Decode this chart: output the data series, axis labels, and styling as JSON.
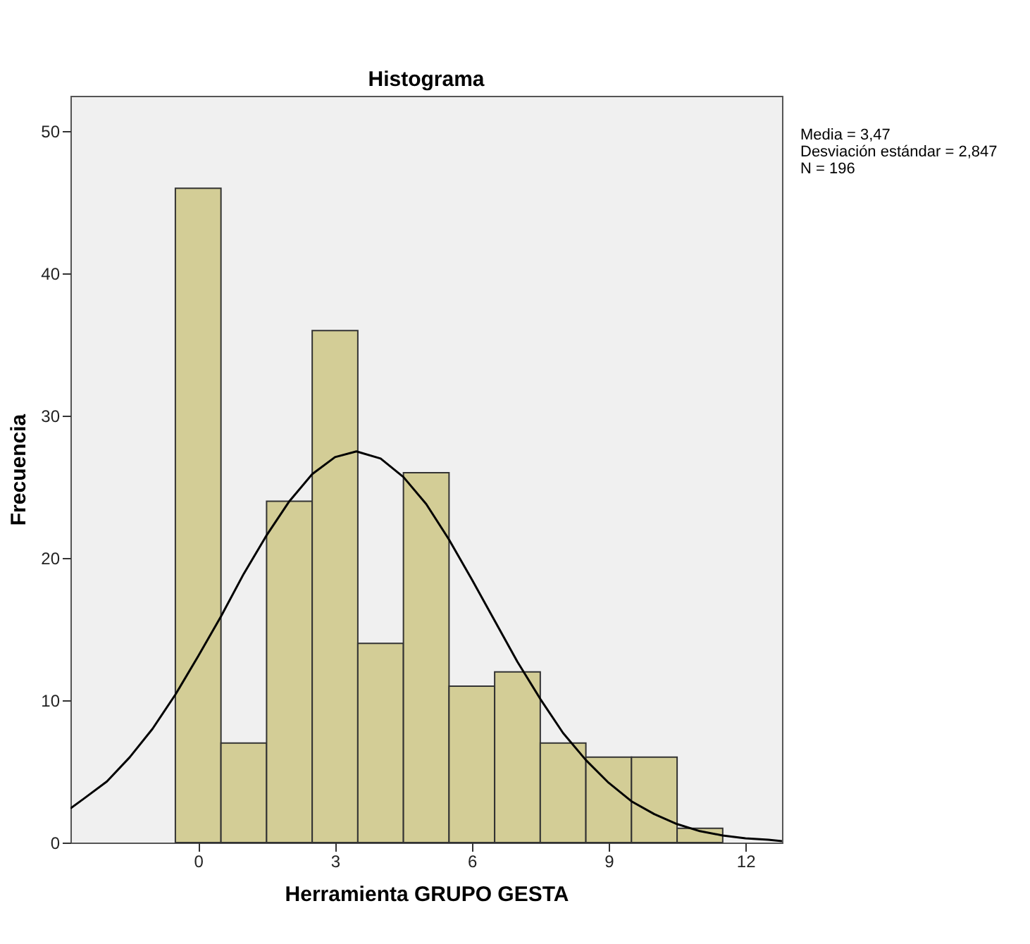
{
  "chart_data": {
    "type": "histogram",
    "title": "Histograma",
    "xlabel": "Herramienta GRUPO GESTA",
    "ylabel": "Frecuencia",
    "bins": [
      -0.5,
      0.5,
      1.5,
      2.5,
      3.5,
      4.5,
      5.5,
      6.5,
      7.5,
      8.5,
      9.5,
      10.5,
      11.5
    ],
    "values": [
      46,
      7,
      24,
      36,
      14,
      26,
      11,
      12,
      7,
      6,
      6,
      1
    ],
    "color": "#d3cd96",
    "xlim": [
      -2.8,
      12.8
    ],
    "xticks": [
      0,
      3,
      6,
      9,
      12
    ],
    "ylim": [
      0,
      52.5
    ],
    "yticks": [
      0,
      10,
      20,
      30,
      40,
      50
    ],
    "annotations": [
      "Media = 3,47",
      "Desviación estándar = 2,847",
      "N = 196"
    ],
    "series": [
      {
        "type": "line",
        "color": "#000000",
        "x": [
          -2.8,
          -2.5,
          -2,
          -1.5,
          -1,
          -0.5,
          0,
          0.5,
          1,
          1.5,
          2,
          2.5,
          3,
          3.47,
          4,
          4.5,
          5,
          5.5,
          6,
          6.5,
          7,
          7.5,
          8,
          8.5,
          9,
          9.5,
          10,
          10.5,
          11,
          11.5,
          12,
          12.5,
          12.8
        ],
        "values": [
          2.4,
          3.1,
          4.3,
          6.0,
          8.0,
          10.4,
          13.1,
          15.9,
          18.9,
          21.6,
          24.0,
          25.9,
          27.1,
          27.5,
          27.0,
          25.7,
          23.8,
          21.3,
          18.5,
          15.6,
          12.7,
          10.1,
          7.7,
          5.8,
          4.2,
          2.9,
          2.0,
          1.3,
          0.8,
          0.5,
          0.3,
          0.2,
          0.1
        ]
      }
    ]
  }
}
